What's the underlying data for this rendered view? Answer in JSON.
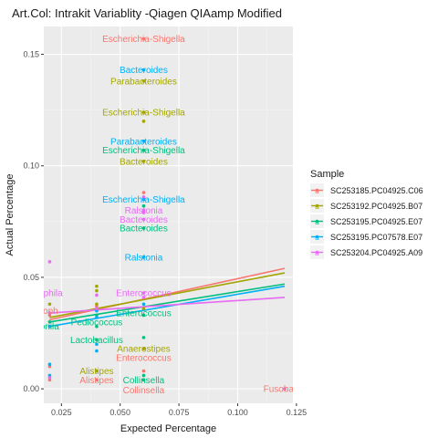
{
  "colors": {
    "panel_bg": "#EBEBEB",
    "grid_major": "#FFFFFF",
    "grid_minor": "#F4F4F4",
    "text": "#1A1A1A",
    "axis_text": "#4D4D4D",
    "series": [
      "#F8766D",
      "#A3A500",
      "#00BF7D",
      "#00B0F6",
      "#E76BF3"
    ]
  },
  "chart_data": {
    "type": "scatter",
    "title": "Art.Col: Intrakit Variablity -Qiagen QIAamp  Modified",
    "xlabel": "Expected Percentage",
    "ylabel": "Actual Percentage",
    "xlim": [
      0.0175,
      0.1235
    ],
    "ylim": [
      -0.0065,
      0.1625
    ],
    "x_ticks": [
      0.025,
      0.05,
      0.075,
      0.1,
      0.125
    ],
    "x_tick_labels": [
      "0.025",
      "0.050",
      "0.075",
      "0.100",
      "0.125"
    ],
    "y_ticks": [
      0.0,
      0.05,
      0.1,
      0.15
    ],
    "y_tick_labels": [
      "0.00",
      "0.05",
      "0.10",
      "0.15"
    ],
    "grid": true,
    "legend": {
      "title": "Sample",
      "position": "right",
      "entries": [
        "SC253185.PC04925.C06",
        "SC253192.PC04925.B07",
        "SC253195.PC04925.E07",
        "SC253195.PC07578.E07",
        "SC253204.PC04925.A09"
      ]
    },
    "series": [
      {
        "name": "SC253185.PC04925.C06",
        "points": [
          [
            0.02,
            0.033
          ],
          [
            0.02,
            0.01
          ],
          [
            0.02,
            0.004
          ],
          [
            0.04,
            0.037
          ],
          [
            0.04,
            0.004
          ],
          [
            0.06,
            0.157
          ],
          [
            0.06,
            0.088
          ],
          [
            0.06,
            0.008
          ],
          [
            0.12,
            0.0
          ]
        ],
        "fit_line": [
          [
            0.02,
            0.031
          ],
          [
            0.12,
            0.054
          ]
        ]
      },
      {
        "name": "SC253192.PC04925.B07",
        "points": [
          [
            0.02,
            0.038
          ],
          [
            0.02,
            0.034
          ],
          [
            0.04,
            0.046
          ],
          [
            0.04,
            0.044
          ],
          [
            0.04,
            0.038
          ],
          [
            0.04,
            0.008
          ],
          [
            0.06,
            0.138
          ],
          [
            0.06,
            0.124
          ],
          [
            0.06,
            0.12
          ],
          [
            0.06,
            0.102
          ],
          [
            0.06,
            0.036
          ],
          [
            0.06,
            0.018
          ]
        ],
        "fit_line": [
          [
            0.02,
            0.032
          ],
          [
            0.12,
            0.052
          ]
        ]
      },
      {
        "name": "SC253195.PC04925.E07",
        "points": [
          [
            0.02,
            0.03
          ],
          [
            0.02,
            0.028
          ],
          [
            0.04,
            0.033
          ],
          [
            0.04,
            0.028
          ],
          [
            0.04,
            0.022
          ],
          [
            0.06,
            0.107
          ],
          [
            0.06,
            0.082
          ],
          [
            0.06,
            0.072
          ],
          [
            0.06,
            0.033
          ],
          [
            0.06,
            0.023
          ],
          [
            0.06,
            0.006
          ],
          [
            0.06,
            0.004
          ]
        ],
        "fit_line": [
          [
            0.02,
            0.03
          ],
          [
            0.12,
            0.047
          ]
        ]
      },
      {
        "name": "SC253195.PC07578.E07",
        "points": [
          [
            0.02,
            0.028
          ],
          [
            0.02,
            0.011
          ],
          [
            0.02,
            0.006
          ],
          [
            0.04,
            0.035
          ],
          [
            0.04,
            0.032
          ],
          [
            0.04,
            0.02
          ],
          [
            0.04,
            0.017
          ],
          [
            0.06,
            0.143
          ],
          [
            0.06,
            0.111
          ],
          [
            0.06,
            0.085
          ],
          [
            0.06,
            0.059
          ],
          [
            0.06,
            0.038
          ]
        ],
        "fit_line": [
          [
            0.02,
            0.028
          ],
          [
            0.12,
            0.046
          ]
        ]
      },
      {
        "name": "SC253204.PC04925.A09",
        "points": [
          [
            0.02,
            0.057
          ],
          [
            0.02,
            0.034
          ],
          [
            0.02,
            0.005
          ],
          [
            0.04,
            0.042
          ],
          [
            0.04,
            0.036
          ],
          [
            0.06,
            0.086
          ],
          [
            0.06,
            0.08
          ],
          [
            0.06,
            0.079
          ],
          [
            0.06,
            0.076
          ],
          [
            0.06,
            0.043
          ],
          [
            0.06,
            0.041
          ],
          [
            0.12,
            0.0
          ]
        ],
        "fit_line": [
          [
            0.02,
            0.034
          ],
          [
            0.12,
            0.041
          ]
        ]
      }
    ],
    "annotations": [
      {
        "label": "Escherichia-Shigella",
        "x": 0.06,
        "y": 0.157,
        "series": 0
      },
      {
        "label": "Bacteroides",
        "x": 0.06,
        "y": 0.143,
        "series": 3
      },
      {
        "label": "Parabacteroides",
        "x": 0.06,
        "y": 0.138,
        "series": 1
      },
      {
        "label": "Escherichia-Shigella",
        "x": 0.06,
        "y": 0.124,
        "series": 1
      },
      {
        "label": "Parabacteroides",
        "x": 0.06,
        "y": 0.111,
        "series": 3
      },
      {
        "label": "Escherichia-Shigella",
        "x": 0.06,
        "y": 0.107,
        "series": 2
      },
      {
        "label": "Bacteroides",
        "x": 0.06,
        "y": 0.102,
        "series": 1
      },
      {
        "label": "Escherichia-Shigella",
        "x": 0.06,
        "y": 0.085,
        "series": 3
      },
      {
        "label": "Ralstonia",
        "x": 0.06,
        "y": 0.08,
        "series": 4
      },
      {
        "label": "Bacteroides",
        "x": 0.06,
        "y": 0.076,
        "series": 4
      },
      {
        "label": "Bacteroides",
        "x": 0.06,
        "y": 0.072,
        "series": 2
      },
      {
        "label": "Ralstonia",
        "x": 0.06,
        "y": 0.059,
        "series": 3
      },
      {
        "label": "Enterococcus",
        "x": 0.06,
        "y": 0.043,
        "series": 4
      },
      {
        "label": "Enterococcus",
        "x": 0.06,
        "y": 0.034,
        "series": 2
      },
      {
        "label": "Anaerostipes",
        "x": 0.06,
        "y": 0.018,
        "series": 1
      },
      {
        "label": "Enterococcus",
        "x": 0.06,
        "y": 0.014,
        "series": 0
      },
      {
        "label": "Collinsella",
        "x": 0.06,
        "y": 0.004,
        "series": 2
      },
      {
        "label": "Collinsella",
        "x": 0.06,
        "y": -0.0005,
        "series": 0
      },
      {
        "label": "Pediococcus",
        "x": 0.04,
        "y": 0.03,
        "series": 2
      },
      {
        "label": "Lactobacillus",
        "x": 0.04,
        "y": 0.022,
        "series": 2
      },
      {
        "label": "Alistipes",
        "x": 0.04,
        "y": 0.008,
        "series": 1
      },
      {
        "label": "Alistipes",
        "x": 0.04,
        "y": 0.004,
        "series": 0
      },
      {
        "label": "Fusobacte",
        "x": 0.12,
        "y": 0.0,
        "series": 0
      },
      {
        "label": "ilophila",
        "x": 0.0195,
        "y": 0.043,
        "series": 4
      },
      {
        "label": "iloph",
        "x": 0.0195,
        "y": 0.035,
        "series": 0
      },
      {
        "label": "lonila",
        "x": 0.0195,
        "y": 0.028,
        "series": 2
      }
    ]
  }
}
